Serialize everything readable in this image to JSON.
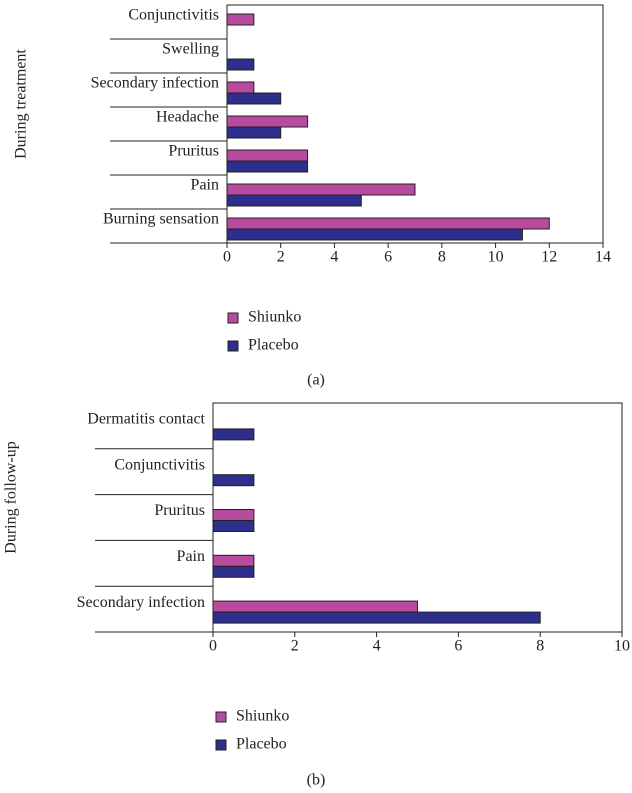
{
  "chart_data": [
    {
      "type": "barh",
      "y_label": "During treatment",
      "categories": [
        "Conjunctivitis",
        "Swelling",
        "Secondary infection",
        "Headache",
        "Pruritus",
        "Pain",
        "Burning sensation"
      ],
      "series": [
        {
          "name": "Shiunko",
          "color": "#b84aa0",
          "values": [
            1,
            0,
            1,
            3,
            3,
            7,
            12
          ]
        },
        {
          "name": "Placebo",
          "color": "#2e2e8c",
          "values": [
            0,
            1,
            2,
            2,
            3,
            5,
            11
          ]
        }
      ],
      "xlim": [
        0,
        14
      ],
      "xticks": [
        0,
        2,
        4,
        6,
        8,
        10,
        12,
        14
      ],
      "caption": "(a)"
    },
    {
      "type": "barh",
      "y_label": "During follow-up",
      "categories": [
        "Dermatitis contact",
        "Conjunctivitis",
        "Pruritus",
        "Pain",
        "Secondary infection"
      ],
      "series": [
        {
          "name": "Shiunko",
          "color": "#b84aa0",
          "values": [
            0,
            0,
            1,
            1,
            5
          ]
        },
        {
          "name": "Placebo",
          "color": "#2e2e8c",
          "values": [
            1,
            1,
            1,
            1,
            8
          ]
        }
      ],
      "xlim": [
        0,
        10
      ],
      "xticks": [
        0,
        2,
        4,
        6,
        8,
        10
      ],
      "caption": "(b)"
    }
  ]
}
